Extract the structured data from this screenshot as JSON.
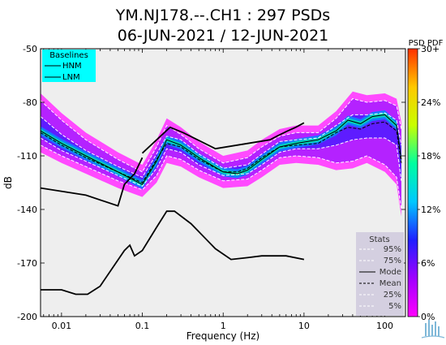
{
  "chart_data": {
    "type": "heatmap",
    "title_line1": "YM.NJ178.--.CH1 : 297 PSDs",
    "title_line2": "06-JUN-2021 / 12-JUN-2021",
    "xlabel": "Frequency (Hz)",
    "ylabel": "dB",
    "x_scale": "log",
    "xlim": [
      0.0055,
      180
    ],
    "ylim": [
      -200,
      -50
    ],
    "x_ticks": [
      {
        "value": 0.01,
        "label": "0.01"
      },
      {
        "value": 0.1,
        "label": "0.1"
      },
      {
        "value": 1,
        "label": "1"
      },
      {
        "value": 10,
        "label": "10"
      },
      {
        "value": 100,
        "label": "100"
      }
    ],
    "y_ticks": [
      {
        "value": -50,
        "label": "-50"
      },
      {
        "value": -80,
        "label": "-80"
      },
      {
        "value": -110,
        "label": "-110"
      },
      {
        "value": -140,
        "label": "-140"
      },
      {
        "value": -170,
        "label": "-170"
      },
      {
        "value": -200,
        "label": "-200"
      }
    ],
    "colorbar": {
      "title": "PSD PDF",
      "range": [
        0,
        30
      ],
      "ticks": [
        {
          "value": 0,
          "label": "0%"
        },
        {
          "value": 6,
          "label": "6%"
        },
        {
          "value": 12,
          "label": "12%"
        },
        {
          "value": 18,
          "label": "18%"
        },
        {
          "value": 24,
          "label": "24%"
        },
        {
          "value": 30,
          "label": "30+"
        }
      ],
      "colors": [
        "#ff00ff",
        "#a000ff",
        "#2020ff",
        "#00c8ff",
        "#00ffa0",
        "#c8ff00",
        "#ffc800",
        "#ff3000"
      ]
    },
    "baselines_legend": {
      "title": "Baselines",
      "entries": [
        "HNM",
        "LNM"
      ],
      "background": "#00ffff"
    },
    "stats_legend": {
      "title": "Stats",
      "entries": [
        {
          "label": "95%",
          "style": "white-dash"
        },
        {
          "label": "75%",
          "style": "white-dash"
        },
        {
          "label": "Mode",
          "style": "black-solid"
        },
        {
          "label": "Mean",
          "style": "black-dash"
        },
        {
          "label": "25%",
          "style": "white-dash"
        },
        {
          "label": "5%",
          "style": "white-dash"
        }
      ],
      "background": "#d4cfe0"
    },
    "hnm": {
      "x": [
        0.1,
        0.22,
        0.32,
        0.8,
        3.8,
        4.6,
        6.3,
        7.9,
        10
      ],
      "y": [
        -108.5,
        -94,
        -97,
        -106,
        -101,
        -99,
        -96,
        -94,
        -91.5
      ]
    },
    "lnm": {
      "x": [
        0.0055,
        0.01,
        0.015,
        0.021,
        0.03,
        0.06,
        0.07,
        0.08,
        0.1,
        0.15,
        0.2,
        0.25,
        0.4,
        0.8,
        1.25,
        2,
        3,
        4,
        6,
        10
      ],
      "y": [
        -185,
        -185,
        -187.5,
        -187.5,
        -183,
        -163,
        -160,
        -166,
        -163,
        -150,
        -141,
        -141,
        -148,
        -162,
        -168,
        -167,
        -166,
        -166,
        -166,
        -168
      ]
    },
    "low_freq_line": {
      "x": [
        0.0055,
        0.02,
        0.05,
        0.06,
        0.08,
        0.1
      ],
      "y": [
        -128,
        -132,
        -138,
        -126,
        -120,
        -111
      ]
    },
    "mode": {
      "x": [
        0.0055,
        0.01,
        0.02,
        0.05,
        0.1,
        0.15,
        0.2,
        0.3,
        0.5,
        1,
        1.5,
        2,
        3,
        5,
        8,
        15,
        25,
        35,
        50,
        70,
        100,
        140,
        160
      ],
      "y": [
        -96,
        -103,
        -110,
        -119,
        -126,
        -113,
        -101,
        -104,
        -111,
        -119,
        -120,
        -118,
        -112,
        -105,
        -103,
        -101,
        -96,
        -90,
        -92,
        -88,
        -87,
        -93,
        -112
      ]
    },
    "mean": {
      "x": [
        0.0055,
        0.01,
        0.02,
        0.05,
        0.1,
        0.15,
        0.2,
        0.3,
        0.5,
        1,
        1.5,
        2,
        3,
        5,
        8,
        15,
        25,
        35,
        50,
        70,
        100,
        140,
        160
      ],
      "y": [
        -97,
        -104,
        -111,
        -119,
        -125,
        -112,
        -103,
        -105,
        -112,
        -119,
        -119,
        -117,
        -111,
        -105,
        -104,
        -103,
        -97,
        -94,
        -95,
        -92,
        -91,
        -96,
        -114
      ]
    },
    "p95": {
      "x": [
        0.0055,
        0.01,
        0.02,
        0.05,
        0.1,
        0.15,
        0.2,
        0.3,
        0.5,
        1,
        2,
        3,
        5,
        8,
        15,
        25,
        40,
        60,
        100,
        140,
        160
      ],
      "y": [
        -79,
        -90,
        -101,
        -112,
        -119,
        -105,
        -93,
        -98,
        -106,
        -114,
        -111,
        -105,
        -99,
        -97,
        -97,
        -89,
        -78,
        -80,
        -79,
        -82,
        -95
      ]
    },
    "p75": {
      "x": [
        0.0055,
        0.01,
        0.02,
        0.05,
        0.1,
        0.15,
        0.2,
        0.3,
        0.5,
        1,
        2,
        3,
        5,
        8,
        15,
        25,
        40,
        60,
        100,
        140,
        160
      ],
      "y": [
        -88,
        -98,
        -107,
        -116,
        -122,
        -109,
        -99,
        -101,
        -109,
        -117,
        -115,
        -109,
        -102,
        -101,
        -100,
        -93,
        -87,
        -87,
        -86,
        -90,
        -104
      ]
    },
    "p25": {
      "x": [
        0.0055,
        0.01,
        0.02,
        0.05,
        0.1,
        0.15,
        0.2,
        0.3,
        0.5,
        1,
        2,
        3,
        5,
        8,
        15,
        25,
        40,
        60,
        100,
        140,
        160
      ],
      "y": [
        -100,
        -107,
        -113,
        -121,
        -127,
        -117,
        -106,
        -108,
        -115,
        -121,
        -120,
        -115,
        -108,
        -106,
        -106,
        -104,
        -101,
        -100,
        -100,
        -104,
        -124
      ]
    },
    "p5": {
      "x": [
        0.0055,
        0.01,
        0.02,
        0.05,
        0.1,
        0.15,
        0.2,
        0.3,
        0.5,
        1,
        2,
        3,
        5,
        8,
        15,
        25,
        40,
        60,
        100,
        140,
        160
      ],
      "y": [
        -104,
        -110,
        -116,
        -124,
        -129,
        -121,
        -110,
        -112,
        -118,
        -124,
        -123,
        -118,
        -111,
        -110,
        -111,
        -114,
        -113,
        -110,
        -115,
        -122,
        -140
      ]
    }
  }
}
